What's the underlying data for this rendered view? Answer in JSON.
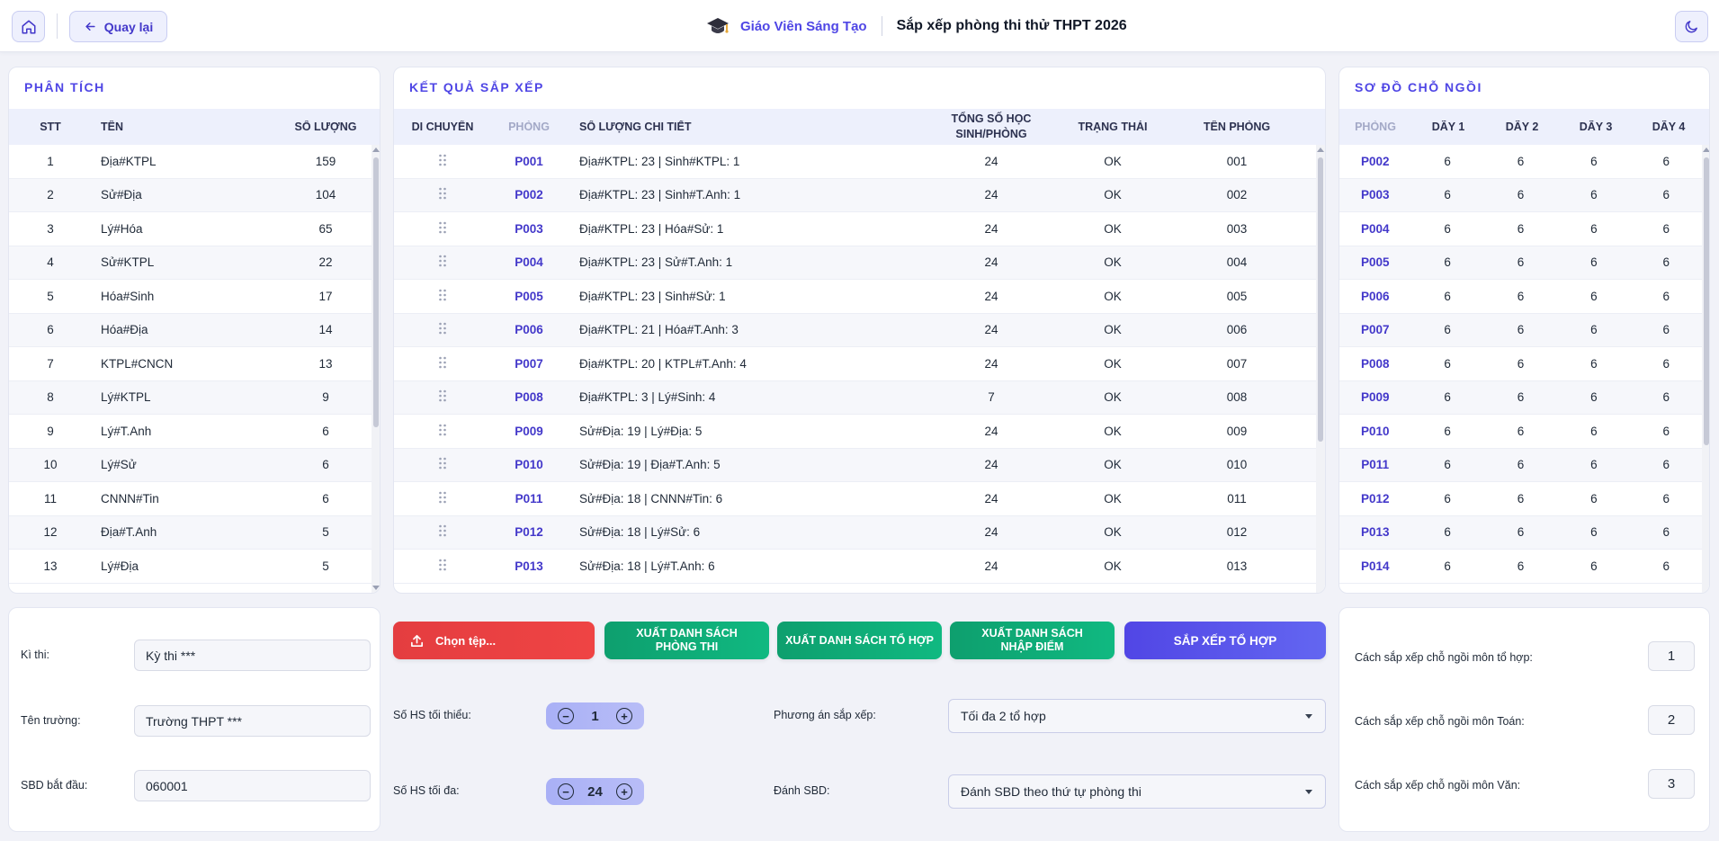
{
  "header": {
    "back_label": "Quay lại",
    "brand_name": "Giáo Viên Sáng Tạo",
    "page_title": "Sắp xếp phòng thi thử THPT 2026"
  },
  "analysis": {
    "title": "PHÂN TÍCH",
    "columns": [
      "STT",
      "TÊN",
      "SỐ LƯỢNG"
    ],
    "rows": [
      [
        "1",
        "Địa#KTPL",
        "159"
      ],
      [
        "2",
        "Sử#Địa",
        "104"
      ],
      [
        "3",
        "Lý#Hóa",
        "65"
      ],
      [
        "4",
        "Sử#KTPL",
        "22"
      ],
      [
        "5",
        "Hóa#Sinh",
        "17"
      ],
      [
        "6",
        "Hóa#Địa",
        "14"
      ],
      [
        "7",
        "KTPL#CNCN",
        "13"
      ],
      [
        "8",
        "Lý#KTPL",
        "9"
      ],
      [
        "9",
        "Lý#T.Anh",
        "6"
      ],
      [
        "10",
        "Lý#Sử",
        "6"
      ],
      [
        "11",
        "CNNN#Tin",
        "6"
      ],
      [
        "12",
        "Địa#T.Anh",
        "5"
      ],
      [
        "13",
        "Lý#Địa",
        "5"
      ]
    ]
  },
  "results": {
    "title": "KẾT QUẢ SẮP XẾP",
    "columns": [
      "DI CHUYỂN",
      "PHÒNG",
      "SỐ LƯỢNG CHI TIẾT",
      "TỔNG SỐ HỌC SINH/PHÒNG",
      "TRẠNG THÁI",
      "TÊN PHÒNG"
    ],
    "rows": [
      [
        "P001",
        "Địa#KTPL: 23 | Sinh#KTPL: 1",
        "24",
        "OK",
        "001"
      ],
      [
        "P002",
        "Địa#KTPL: 23 | Sinh#T.Anh: 1",
        "24",
        "OK",
        "002"
      ],
      [
        "P003",
        "Địa#KTPL: 23 | Hóa#Sử: 1",
        "24",
        "OK",
        "003"
      ],
      [
        "P004",
        "Địa#KTPL: 23 | Sử#T.Anh: 1",
        "24",
        "OK",
        "004"
      ],
      [
        "P005",
        "Địa#KTPL: 23 | Sinh#Sử: 1",
        "24",
        "OK",
        "005"
      ],
      [
        "P006",
        "Địa#KTPL: 21 | Hóa#T.Anh: 3",
        "24",
        "OK",
        "006"
      ],
      [
        "P007",
        "Địa#KTPL: 20 | KTPL#T.Anh: 4",
        "24",
        "OK",
        "007"
      ],
      [
        "P008",
        "Địa#KTPL: 3 | Lý#Sinh: 4",
        "7",
        "OK",
        "008"
      ],
      [
        "P009",
        "Sử#Địa: 19 | Lý#Địa: 5",
        "24",
        "OK",
        "009"
      ],
      [
        "P010",
        "Sử#Địa: 19 | Địa#T.Anh: 5",
        "24",
        "OK",
        "010"
      ],
      [
        "P011",
        "Sử#Địa: 18 | CNNN#Tin: 6",
        "24",
        "OK",
        "011"
      ],
      [
        "P012",
        "Sử#Địa: 18 | Lý#Sử: 6",
        "24",
        "OK",
        "012"
      ],
      [
        "P013",
        "Sử#Địa: 18 | Lý#T.Anh: 6",
        "24",
        "OK",
        "013"
      ]
    ]
  },
  "seating": {
    "title": "SƠ ĐỒ CHỖ NGỒI",
    "columns": [
      "PHÒNG",
      "DÃY 1",
      "DÃY 2",
      "DÃY 3",
      "DÃY 4"
    ],
    "rows": [
      [
        "P002",
        "6",
        "6",
        "6",
        "6"
      ],
      [
        "P003",
        "6",
        "6",
        "6",
        "6"
      ],
      [
        "P004",
        "6",
        "6",
        "6",
        "6"
      ],
      [
        "P005",
        "6",
        "6",
        "6",
        "6"
      ],
      [
        "P006",
        "6",
        "6",
        "6",
        "6"
      ],
      [
        "P007",
        "6",
        "6",
        "6",
        "6"
      ],
      [
        "P008",
        "6",
        "6",
        "6",
        "6"
      ],
      [
        "P009",
        "6",
        "6",
        "6",
        "6"
      ],
      [
        "P010",
        "6",
        "6",
        "6",
        "6"
      ],
      [
        "P011",
        "6",
        "6",
        "6",
        "6"
      ],
      [
        "P012",
        "6",
        "6",
        "6",
        "6"
      ],
      [
        "P013",
        "6",
        "6",
        "6",
        "6"
      ],
      [
        "P014",
        "6",
        "6",
        "6",
        "6"
      ]
    ]
  },
  "info_form": {
    "exam_label": "Kì thi:",
    "exam_value": "Kỳ thi ***",
    "school_label": "Tên trường:",
    "school_value": "Trường THPT ***",
    "sbd_label": "SBD bắt đầu:",
    "sbd_value": "060001"
  },
  "actions": {
    "choose_file": "Chọn tệp...",
    "export_rooms": "XUẤT DANH SÁCH PHÒNG THI",
    "export_combos": "XUẤT DANH SÁCH TỔ HỢP",
    "export_scores": "XUẤT DANH SÁCH NHẬP ĐIỂM",
    "arrange": "SẮP XẾP TỔ HỢP",
    "min_label": "Số HS tối thiểu:",
    "min_value": "1",
    "max_label": "Số HS tối đa:",
    "max_value": "24",
    "plan_label": "Phương án sắp xếp:",
    "plan_value": "Tối đa 2 tổ hợp",
    "sbd_mode_label": "Đánh SBD:",
    "sbd_mode_value": "Đánh SBD theo thứ tự phòng thi"
  },
  "seat_settings": {
    "combo_label": "Cách sắp xếp chỗ ngồi môn tổ hợp:",
    "combo_value": "1",
    "math_label": "Cách sắp xếp chỗ ngồi môn Toán:",
    "math_value": "2",
    "lit_label": "Cách sắp xếp chỗ ngồi môn Văn:",
    "lit_value": "3"
  },
  "icons": {
    "home": "home-icon",
    "back": "arrow-left-icon",
    "brand": "graduation-cap-icon",
    "theme": "moon-icon",
    "upload": "upload-icon",
    "drag": "drag-handle-icon"
  },
  "colors": {
    "accent": "#4f46e5",
    "danger": "#ef4444",
    "success": "#10b981"
  }
}
